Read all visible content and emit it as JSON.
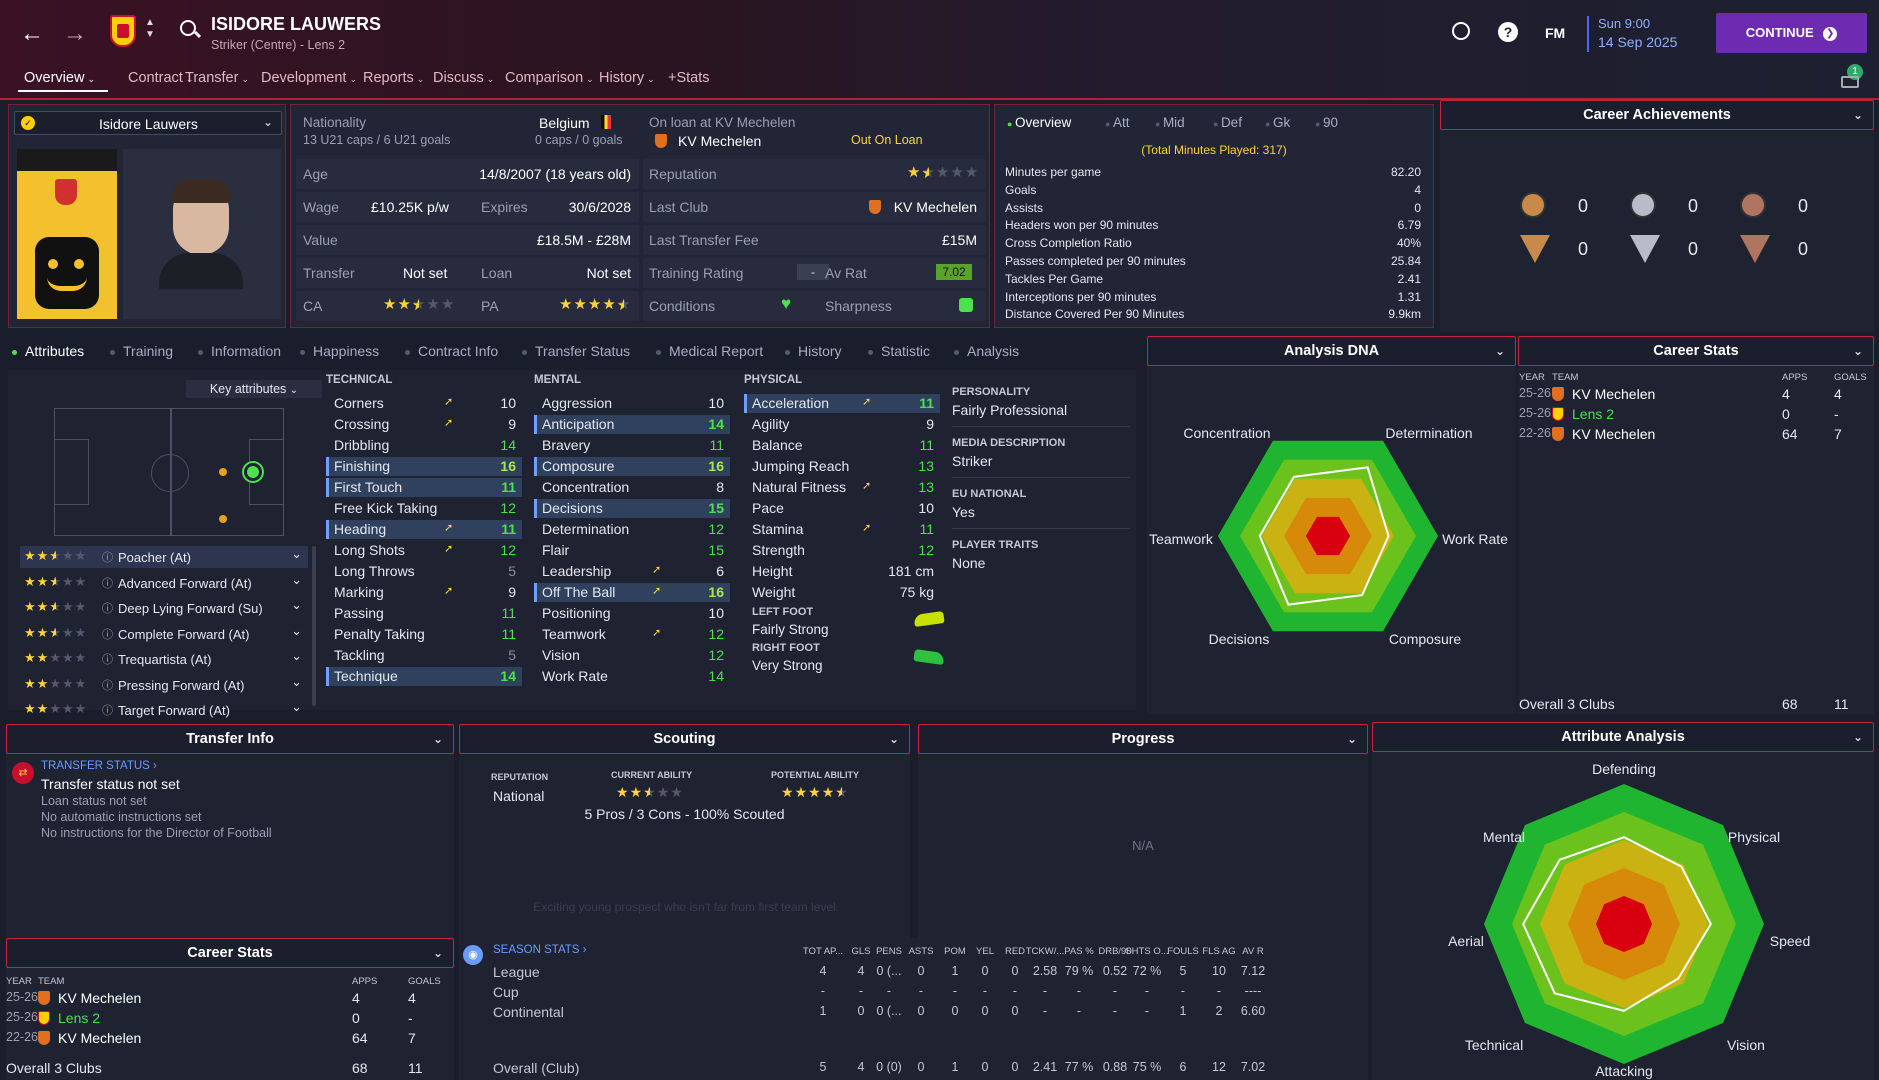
{
  "header": {
    "player_name": "ISIDORE LAUWERS",
    "subtitle": "Striker (Centre) - Lens 2",
    "time": "Sun 9:00",
    "date": "14 Sep 2025",
    "continue_label": "CONTINUE",
    "fm_label": "FM",
    "notification_count": "1",
    "nav": [
      "Overview",
      "Contract",
      "Transfer",
      "Development",
      "Reports",
      "Discuss",
      "Comparison",
      "History",
      "+Stats"
    ]
  },
  "profile": {
    "selector_name": "Isidore Lauwers",
    "nationality_label": "Nationality",
    "nationality": "Belgium",
    "u21": "13 U21 caps / 6 U21 goals",
    "caps": "0 caps / 0 goals",
    "loan_label": "On loan at KV Mechelen",
    "loan_club": "KV Mechelen",
    "loan_status": "Out On Loan",
    "age_label": "Age",
    "age": "14/8/2007 (18 years old)",
    "reputation_label": "Reputation",
    "reputation_stars": 1.5,
    "wage_label": "Wage",
    "wage": "£10.25K p/w",
    "expires_label": "Expires",
    "expires": "30/6/2028",
    "lastclub_label": "Last Club",
    "lastclub": "KV Mechelen",
    "value_label": "Value",
    "value": "£18.5M - £28M",
    "fee_label": "Last Transfer Fee",
    "fee": "£15M",
    "transfer_label": "Transfer",
    "transfer": "Not set",
    "loanset_label": "Loan",
    "loanset": "Not set",
    "training_label": "Training Rating",
    "training": "-",
    "avrat_label": "Av Rat",
    "avrat": "7.02",
    "ca_label": "CA",
    "ca_stars": 2.5,
    "pa_label": "PA",
    "pa_stars": 4.5,
    "conditions_label": "Conditions",
    "sharpness_label": "Sharpness"
  },
  "overview_stats": {
    "tabs": [
      "Overview",
      "Att",
      "Mid",
      "Def",
      "Gk",
      "90"
    ],
    "total_minutes": "(Total Minutes Played: 317)",
    "rows": [
      {
        "label": "Minutes per game",
        "value": "82.20"
      },
      {
        "label": "Goals",
        "value": "4"
      },
      {
        "label": "Assists",
        "value": "0"
      },
      {
        "label": "Headers won per 90 minutes",
        "value": "6.79"
      },
      {
        "label": "Cross Completion Ratio",
        "value": "40%"
      },
      {
        "label": "Passes completed per 90 minutes",
        "value": "25.84"
      },
      {
        "label": "Tackles Per Game",
        "value": "2.41"
      },
      {
        "label": "Interceptions per 90 minutes",
        "value": "1.31"
      },
      {
        "label": "Distance Covered Per 90 Minutes",
        "value": "9.9km"
      }
    ]
  },
  "achievements": {
    "title": "Career Achievements",
    "counts": [
      "0",
      "0",
      "0",
      "0",
      "0",
      "0"
    ]
  },
  "subtabs": [
    "Attributes",
    "Training",
    "Information",
    "Happiness",
    "Contract Info",
    "Transfer Status",
    "Medical Report",
    "History",
    "Statistic",
    "Analysis"
  ],
  "key_attributes_label": "Key attributes",
  "roles": [
    {
      "name": "Poacher (At)",
      "stars": 2.5
    },
    {
      "name": "Advanced Forward (At)",
      "stars": 2.5
    },
    {
      "name": "Deep Lying Forward (Su)",
      "stars": 2.5
    },
    {
      "name": "Complete Forward (At)",
      "stars": 2.5
    },
    {
      "name": "Trequartista (At)",
      "stars": 2
    },
    {
      "name": "Pressing Forward (At)",
      "stars": 2
    },
    {
      "name": "Target Forward (At)",
      "stars": 2
    }
  ],
  "technical": {
    "title": "TECHNICAL",
    "items": [
      {
        "n": "Corners",
        "v": "10",
        "c": "#e6e8ef",
        "arrow": true,
        "hl": false
      },
      {
        "n": "Crossing",
        "v": "9",
        "c": "#e6e8ef",
        "arrow": true,
        "hl": false
      },
      {
        "n": "Dribbling",
        "v": "14",
        "c": "#4fe04f",
        "arrow": false,
        "hl": false
      },
      {
        "n": "Finishing",
        "v": "16",
        "c": "#a8e84a",
        "arrow": false,
        "hl": true
      },
      {
        "n": "First Touch",
        "v": "11",
        "c": "#4fe04f",
        "arrow": false,
        "hl": true
      },
      {
        "n": "Free Kick Taking",
        "v": "12",
        "c": "#4fe04f",
        "arrow": false,
        "hl": false
      },
      {
        "n": "Heading",
        "v": "11",
        "c": "#4fe04f",
        "arrow": true,
        "hl": true
      },
      {
        "n": "Long Shots",
        "v": "12",
        "c": "#4fe04f",
        "arrow": true,
        "hl": false
      },
      {
        "n": "Long Throws",
        "v": "5",
        "c": "#8a8f9e",
        "arrow": false,
        "hl": false
      },
      {
        "n": "Marking",
        "v": "9",
        "c": "#e6e8ef",
        "arrow": true,
        "hl": false
      },
      {
        "n": "Passing",
        "v": "11",
        "c": "#4fe04f",
        "arrow": false,
        "hl": false
      },
      {
        "n": "Penalty Taking",
        "v": "11",
        "c": "#4fe04f",
        "arrow": false,
        "hl": false
      },
      {
        "n": "Tackling",
        "v": "5",
        "c": "#8a8f9e",
        "arrow": false,
        "hl": false
      },
      {
        "n": "Technique",
        "v": "14",
        "c": "#4fe04f",
        "arrow": false,
        "hl": true
      }
    ]
  },
  "mental": {
    "title": "MENTAL",
    "items": [
      {
        "n": "Aggression",
        "v": "10",
        "c": "#e6e8ef",
        "arrow": false,
        "hl": false
      },
      {
        "n": "Anticipation",
        "v": "14",
        "c": "#4fe04f",
        "arrow": false,
        "hl": true
      },
      {
        "n": "Bravery",
        "v": "11",
        "c": "#4fe04f",
        "arrow": false,
        "hl": false
      },
      {
        "n": "Composure",
        "v": "16",
        "c": "#a8e84a",
        "arrow": false,
        "hl": true
      },
      {
        "n": "Concentration",
        "v": "8",
        "c": "#e6e8ef",
        "arrow": false,
        "hl": false
      },
      {
        "n": "Decisions",
        "v": "15",
        "c": "#4fe04f",
        "arrow": false,
        "hl": true
      },
      {
        "n": "Determination",
        "v": "12",
        "c": "#4fe04f",
        "arrow": false,
        "hl": false
      },
      {
        "n": "Flair",
        "v": "15",
        "c": "#4fe04f",
        "arrow": false,
        "hl": false
      },
      {
        "n": "Leadership",
        "v": "6",
        "c": "#e6e8ef",
        "arrow": true,
        "hl": false
      },
      {
        "n": "Off The Ball",
        "v": "16",
        "c": "#a8e84a",
        "arrow": true,
        "hl": true
      },
      {
        "n": "Positioning",
        "v": "10",
        "c": "#e6e8ef",
        "arrow": false,
        "hl": false
      },
      {
        "n": "Teamwork",
        "v": "12",
        "c": "#4fe04f",
        "arrow": true,
        "hl": false
      },
      {
        "n": "Vision",
        "v": "12",
        "c": "#4fe04f",
        "arrow": false,
        "hl": false
      },
      {
        "n": "Work Rate",
        "v": "14",
        "c": "#4fe04f",
        "arrow": false,
        "hl": false
      }
    ]
  },
  "physical": {
    "title": "PHYSICAL",
    "items": [
      {
        "n": "Acceleration",
        "v": "11",
        "c": "#4fe04f",
        "arrow": true,
        "hl": true
      },
      {
        "n": "Agility",
        "v": "9",
        "c": "#e6e8ef",
        "arrow": false,
        "hl": false
      },
      {
        "n": "Balance",
        "v": "11",
        "c": "#4fe04f",
        "arrow": false,
        "hl": false
      },
      {
        "n": "Jumping Reach",
        "v": "13",
        "c": "#4fe04f",
        "arrow": false,
        "hl": false
      },
      {
        "n": "Natural Fitness",
        "v": "13",
        "c": "#4fe04f",
        "arrow": true,
        "hl": false
      },
      {
        "n": "Pace",
        "v": "10",
        "c": "#e6e8ef",
        "arrow": false,
        "hl": false
      },
      {
        "n": "Stamina",
        "v": "11",
        "c": "#4fe04f",
        "arrow": true,
        "hl": false
      },
      {
        "n": "Strength",
        "v": "12",
        "c": "#4fe04f",
        "arrow": false,
        "hl": false
      }
    ],
    "height_label": "Height",
    "height": "181 cm",
    "weight_label": "Weight",
    "weight": "75 kg",
    "left_foot_label": "LEFT FOOT",
    "left_foot": "Fairly Strong",
    "right_foot_label": "RIGHT FOOT",
    "right_foot": "Very Strong"
  },
  "info": {
    "personality_label": "PERSONALITY",
    "personality": "Fairly Professional",
    "media_label": "MEDIA DESCRIPTION",
    "media": "Striker",
    "eu_label": "EU NATIONAL",
    "eu": "Yes",
    "traits_label": "PLAYER TRAITS",
    "traits": "None"
  },
  "analysis_dna": {
    "title": "Analysis DNA",
    "labels": [
      "Concentration",
      "Determination",
      "Work Rate",
      "Composure",
      "Decisions",
      "Teamwork"
    ]
  },
  "career_stats": {
    "title": "Career Stats",
    "headers": [
      "YEAR",
      "TEAM",
      "APPS",
      "GOALS"
    ],
    "rows": [
      {
        "year": "25-26",
        "team": "KV Mechelen",
        "apps": "4",
        "goals": "4",
        "green": false
      },
      {
        "year": "25-26",
        "team": "Lens 2",
        "apps": "0",
        "goals": "-",
        "green": true
      },
      {
        "year": "22-26",
        "team": "KV Mechelen",
        "apps": "64",
        "goals": "7",
        "green": false
      }
    ],
    "overall_label": "Overall 3 Clubs",
    "overall_apps": "68",
    "overall_goals": "11"
  },
  "transfer_info": {
    "title": "Transfer Info",
    "status_label": "TRANSFER STATUS",
    "status": "Transfer status not set",
    "lines": [
      "Loan status not set",
      "No automatic instructions set",
      "No instructions for the Director of Football"
    ]
  },
  "scouting": {
    "title": "Scouting",
    "rep_label": "REPUTATION",
    "rep": "National",
    "ca_label": "CURRENT ABILITY",
    "ca_stars": 2.5,
    "pa_label": "POTENTIAL ABILITY",
    "pa_stars": 4.5,
    "summary": "5 Pros / 3 Cons - 100% Scouted",
    "faded": "Exciting young prospect who isn't far from first team level"
  },
  "progress": {
    "title": "Progress",
    "na": "N/A"
  },
  "attribute_analysis": {
    "title": "Attribute Analysis",
    "labels": [
      "Defending",
      "Physical",
      "Speed",
      "Vision",
      "Attacking",
      "Technical",
      "Aerial",
      "Mental"
    ]
  },
  "season_stats": {
    "title": "SEASON STATS",
    "headers": [
      "TOT AP...",
      "GLS",
      "PENS",
      "ASTS",
      "POM",
      "YEL",
      "RED",
      "TCKW/...",
      "PAS %",
      "DRB/90",
      "SHTS O...",
      "FOULS",
      "FLS AG",
      "AV R"
    ],
    "rows": [
      {
        "name": "League",
        "vals": [
          "4",
          "4",
          "0 (...",
          "0",
          "1",
          "0",
          "0",
          "2.58",
          "79 %",
          "0.52",
          "72 %",
          "5",
          "10",
          "7.12"
        ]
      },
      {
        "name": "Cup",
        "vals": [
          "-",
          "-",
          "-",
          "-",
          "-",
          "-",
          "-",
          "-",
          "-",
          "-",
          "-",
          "-",
          "-",
          "----"
        ]
      },
      {
        "name": "Continental",
        "vals": [
          "1",
          "0",
          "0 (...",
          "0",
          "0",
          "0",
          "0",
          "-",
          "-",
          "-",
          "-",
          "1",
          "2",
          "6.60"
        ]
      }
    ],
    "overall": {
      "name": "Overall (Club)",
      "vals": [
        "5",
        "4",
        "0 (0)",
        "0",
        "1",
        "0",
        "0",
        "2.41",
        "77 %",
        "0.88",
        "75 %",
        "6",
        "12",
        "7.02"
      ]
    }
  },
  "colors": {
    "accent": "#b61f3a",
    "continue": "#6c2bb0",
    "green": "#4fe04f",
    "gold": "#ffd23c"
  }
}
